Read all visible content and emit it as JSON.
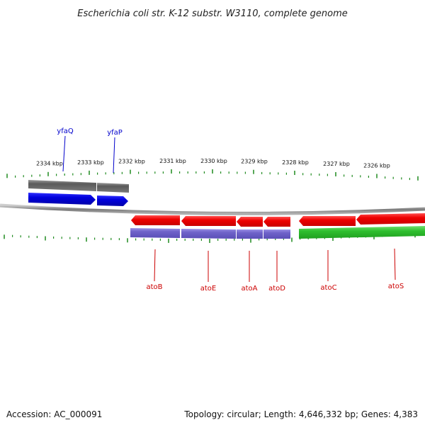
{
  "title": "Escherichia coli str. K-12 substr. W3110, complete genome",
  "footer": {
    "accession": "Accession: AC_000091",
    "topology": "Topology: circular; Length: 4,646,332 bp; Genes: 4,383"
  },
  "ruler": {
    "labels": [
      "2334 kbp",
      "2333 kbp",
      "2332 kbp",
      "2331 kbp",
      "2330 kbp",
      "2329 kbp",
      "2328 kbp",
      "2327 kbp",
      "2326 kbp"
    ]
  },
  "genes": {
    "forward": [
      {
        "name": "yfaQ",
        "color": "#0000cc"
      },
      {
        "name": "yfaP",
        "color": "#0000cc"
      }
    ],
    "reverse": [
      {
        "name": "atoB",
        "color": "#cc0000"
      },
      {
        "name": "atoE",
        "color": "#cc0000"
      },
      {
        "name": "atoA",
        "color": "#cc0000"
      },
      {
        "name": "atoD",
        "color": "#cc0000"
      },
      {
        "name": "atoC",
        "color": "#cc0000"
      },
      {
        "name": "atoS",
        "color": "#cc0000"
      }
    ]
  },
  "colors": {
    "forward_cds": "#0000dd",
    "reverse_cds": "#ee0000",
    "gene_gray": "#6b6b6b",
    "gene_purple": "#6f63c9",
    "gene_green": "#2fbf2f",
    "tick": "#1f8a1f",
    "backbone": "#8c8c8c"
  }
}
